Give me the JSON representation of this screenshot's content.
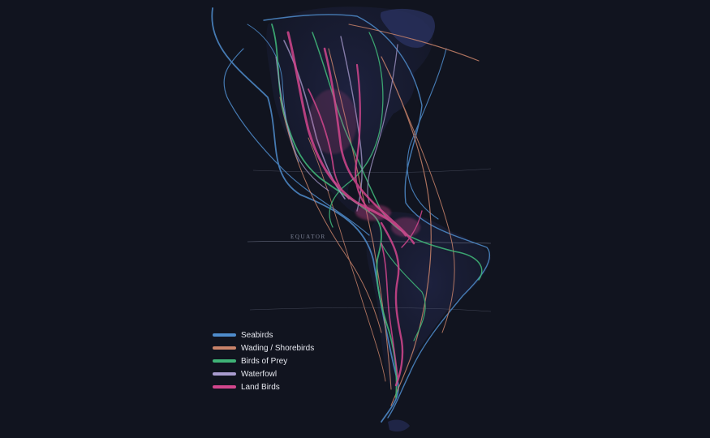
{
  "map": {
    "equator_label": "EQUATOR"
  },
  "legend": {
    "items": [
      {
        "label": "Seabirds",
        "color": "#4f8ccc"
      },
      {
        "label": "Wading / Shorebirds",
        "color": "#c9836a"
      },
      {
        "label": "Birds of Prey",
        "color": "#3fb377"
      },
      {
        "label": "Waterfowl",
        "color": "#a99ccf"
      },
      {
        "label": "Land Birds",
        "color": "#d2468d"
      }
    ]
  },
  "colors": {
    "background": "#11141f",
    "land": "#1e2545",
    "equator_line": "#6c7186"
  }
}
